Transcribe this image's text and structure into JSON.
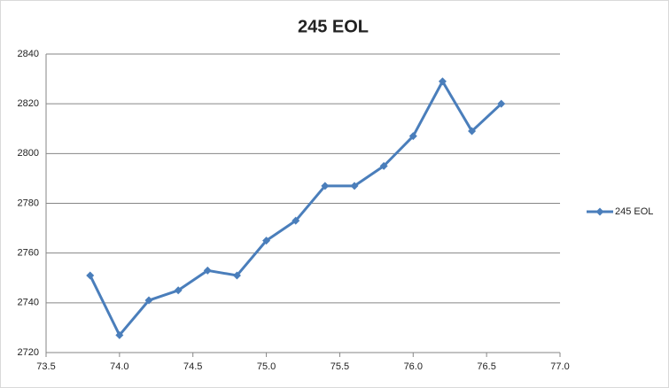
{
  "chart_data": {
    "type": "line",
    "title": "245 EOL",
    "series": [
      {
        "name": "245 EOL",
        "color": "#4a7ebb",
        "x": [
          73.8,
          74.0,
          74.2,
          74.4,
          74.6,
          74.8,
          75.0,
          75.2,
          75.4,
          75.6,
          75.8,
          76.0,
          76.2,
          76.4,
          76.6
        ],
        "values": [
          2751,
          2727,
          2741,
          2745,
          2753,
          2751,
          2765,
          2773,
          2787,
          2787,
          2795,
          2807,
          2829,
          2809,
          2820
        ]
      }
    ],
    "xlim": [
      73.5,
      77.0
    ],
    "xticks": [
      73.5,
      {
        "value": 74,
        "label": "74.0"
      },
      74.5,
      {
        "value": 75,
        "label": "75.0"
      },
      75.5,
      {
        "value": 76,
        "label": "76.0"
      },
      76.5,
      {
        "value": 77,
        "label": "77.0"
      }
    ],
    "ylim": [
      2720,
      2840
    ],
    "yticks": [
      2720,
      2740,
      2760,
      2780,
      2800,
      2820,
      2840
    ],
    "grid": true,
    "legend": "right"
  }
}
